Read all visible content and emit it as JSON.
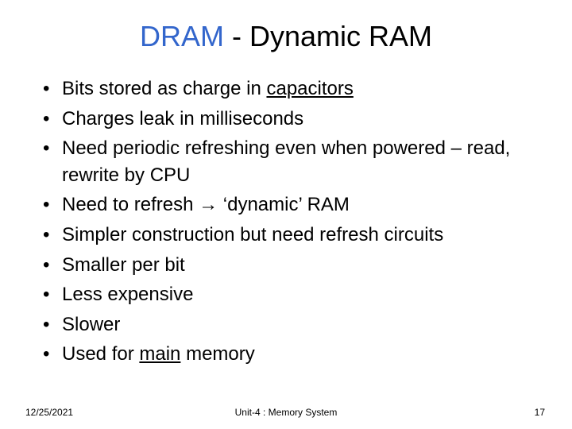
{
  "title": {
    "accent": "DRAM",
    "rest": " - Dynamic RAM",
    "accent_color": "#3366cc",
    "rest_color": "#000000",
    "fontsize": 36
  },
  "bullets": {
    "fontsize": 24,
    "items": [
      {
        "pre": "Bits stored as charge in ",
        "underline": "capacitors",
        "post": ""
      },
      {
        "pre": "Charges leak in milliseconds",
        "underline": "",
        "post": ""
      },
      {
        "pre": "Need periodic refreshing even when powered – read, rewrite by CPU",
        "underline": "",
        "post": ""
      },
      {
        "pre": "Need to refresh → ‘dynamic’ RAM",
        "underline": "",
        "post": ""
      },
      {
        "pre": "Simpler construction but need refresh circuits",
        "underline": "",
        "post": ""
      },
      {
        "pre": "Smaller per bit",
        "underline": "",
        "post": ""
      },
      {
        "pre": "Less expensive",
        "underline": "",
        "post": ""
      },
      {
        "pre": "Slower",
        "underline": "",
        "post": ""
      },
      {
        "pre": "Used for ",
        "underline": "main",
        "post": " memory"
      }
    ]
  },
  "footer": {
    "date": "12/25/2021",
    "center": "Unit-4 : Memory System",
    "page": "17",
    "fontsize": 12
  },
  "background_color": "#ffffff"
}
